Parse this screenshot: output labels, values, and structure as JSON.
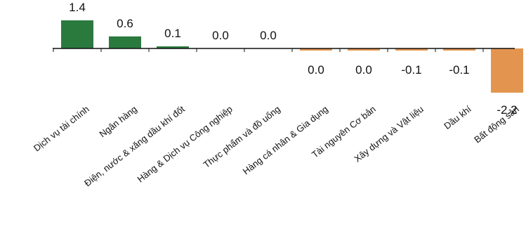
{
  "chart_data": {
    "type": "bar",
    "categories": [
      "Dịch vụ tài chính",
      "Ngân hàng",
      "Điện, nước & xăng dầu khí đốt",
      "Hàng & Dịch vụ Công nghiệp",
      "Thực phẩm và đồ uống",
      "Hàng cá nhân & Gia dụng",
      "Tài nguyên Cơ bản",
      "Xây dựng và Vật liệu",
      "Dầu khí",
      "Bất động sản"
    ],
    "values": [
      1.4,
      0.6,
      0.1,
      0.0,
      0.0,
      -0.02,
      -0.02,
      -0.1,
      -0.1,
      -2.2
    ],
    "value_labels": [
      "1.4",
      "0.6",
      "0.1",
      "0.0",
      "0.0",
      "0.0",
      "0.0",
      "-0.1",
      "-0.1",
      "-2.2"
    ],
    "title": "",
    "xlabel": "",
    "ylabel": "",
    "ylim": [
      -2.2,
      1.4
    ],
    "grid": false,
    "colors": {
      "positive": "#2a7a3e",
      "negative": "#e3954f",
      "axis": "#111111"
    }
  }
}
